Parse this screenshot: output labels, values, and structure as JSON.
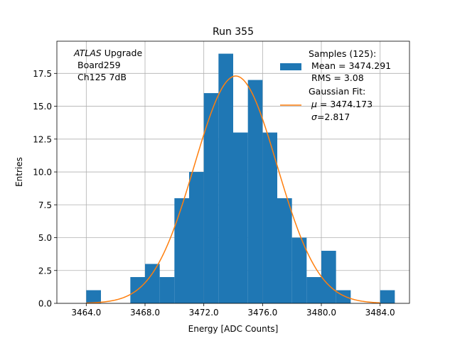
{
  "chart_data": {
    "type": "bar",
    "title": "Run 355",
    "xlabel": "Energy [ADC Counts]",
    "ylabel": "Entries",
    "xlim": [
      3462.0,
      3486.0
    ],
    "ylim": [
      0.0,
      19.95
    ],
    "grid": true,
    "xticks": [
      3464.0,
      3468.0,
      3472.0,
      3476.0,
      3480.0,
      3484.0
    ],
    "xtick_labels": [
      "3464.0",
      "3468.0",
      "3472.0",
      "3476.0",
      "3480.0",
      "3484.0"
    ],
    "yticks": [
      0.0,
      2.5,
      5.0,
      7.5,
      10.0,
      12.5,
      15.0,
      17.5
    ],
    "ytick_labels": [
      "0.0",
      "2.5",
      "5.0",
      "7.5",
      "10.0",
      "12.5",
      "15.0",
      "17.5"
    ],
    "bin_width": 1,
    "bins": [
      {
        "x": 3464,
        "count": 1
      },
      {
        "x": 3467,
        "count": 2
      },
      {
        "x": 3468,
        "count": 3
      },
      {
        "x": 3469,
        "count": 2
      },
      {
        "x": 3470,
        "count": 8
      },
      {
        "x": 3471,
        "count": 10
      },
      {
        "x": 3472,
        "count": 16
      },
      {
        "x": 3473,
        "count": 19
      },
      {
        "x": 3474,
        "count": 13
      },
      {
        "x": 3475,
        "count": 17
      },
      {
        "x": 3476,
        "count": 13
      },
      {
        "x": 3477,
        "count": 8
      },
      {
        "x": 3478,
        "count": 5
      },
      {
        "x": 3479,
        "count": 2
      },
      {
        "x": 3480,
        "count": 4
      },
      {
        "x": 3481,
        "count": 1
      },
      {
        "x": 3484,
        "count": 1
      }
    ],
    "gaussian": {
      "mu": 3474.173,
      "sigma": 2.817,
      "amplitude": 17.3
    },
    "bar_color": "#1f77b4",
    "fit_color": "#ff7f0e",
    "annotation": {
      "italic": "ATLAS",
      "line1_rest": " Upgrade",
      "line2": "Board259",
      "line3": "Ch125 7dB"
    },
    "legend": {
      "position": "top-right",
      "samples_title": "Samples (125):",
      "samples_mean": "Mean = 3474.291",
      "samples_rms": "RMS = 3.08",
      "fit_title": "Gaussian Fit:",
      "fit_mu_symbol": "μ",
      "fit_mu_value": " = 3474.173",
      "fit_sigma_symbol": "σ",
      "fit_sigma_value": "=2.817"
    }
  }
}
